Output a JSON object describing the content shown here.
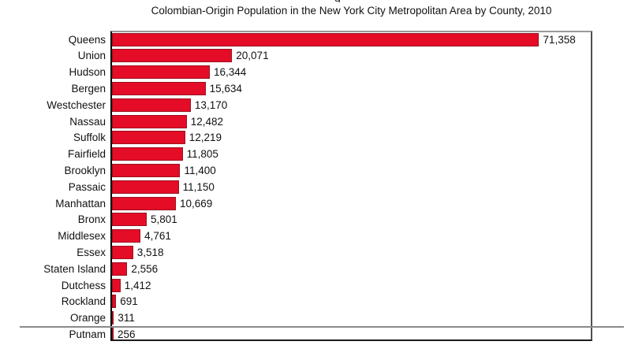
{
  "truncated_text_fragment": "g",
  "chart_data": {
    "type": "bar",
    "orientation": "horizontal",
    "title": "Colombian-Origin Population in the New York City Metropolitan Area by County, 2010",
    "xlabel": "",
    "ylabel": "",
    "categories": [
      "Queens",
      "Union",
      "Hudson",
      "Bergen",
      "Westchester",
      "Nassau",
      "Suffolk",
      "Fairfield",
      "Brooklyn",
      "Passaic",
      "Manhattan",
      "Bronx",
      "Middlesex",
      "Essex",
      "Staten Island",
      "Dutchess",
      "Rockland",
      "Orange",
      "Putnam"
    ],
    "values": [
      71358,
      20071,
      16344,
      15634,
      13170,
      12482,
      12219,
      11805,
      11400,
      11150,
      10669,
      5801,
      4761,
      3518,
      2556,
      1412,
      691,
      311,
      256
    ],
    "value_labels": [
      "71,358",
      "20,071",
      "16,344",
      "15,634",
      "13,170",
      "12,482",
      "12,219",
      "11,805",
      "11,400",
      "11,150",
      "10,669",
      "5,801",
      "4,761",
      "3,518",
      "2,556",
      "1,412",
      "691",
      "311",
      "256"
    ],
    "xlim": [
      0,
      80000
    ],
    "grid": false,
    "legend": false,
    "colors": {
      "bar_fill": "#e50c27",
      "bar_border": "#991120",
      "axis": "#000000",
      "frame": "#9a9a9a",
      "separator": "#8a8a8a",
      "text": "#111111"
    }
  }
}
